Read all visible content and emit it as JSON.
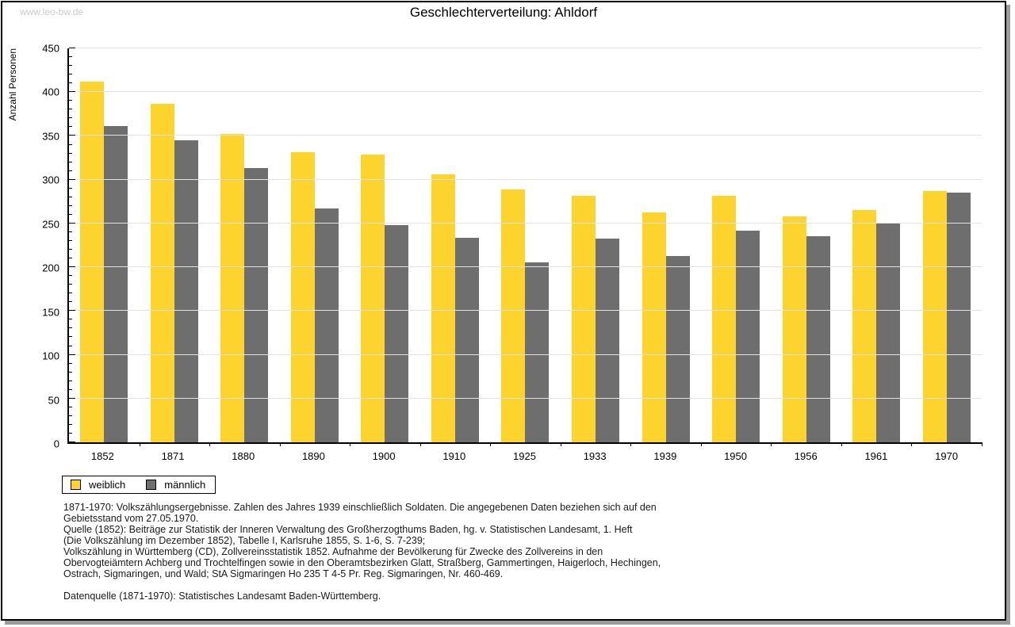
{
  "page": {
    "watermark": "www.leo-bw.de",
    "title": "Geschlechterverteilung: Ahldorf"
  },
  "chart_data": {
    "type": "bar",
    "title": "Geschlechterverteilung: Ahldorf",
    "xlabel": "",
    "ylabel": "Anzahl Personen",
    "ylim": [
      0,
      450
    ],
    "ytick_step": 50,
    "yminor_step": 10,
    "grid": "horizontal",
    "legend_position": "bottom-left",
    "categories": [
      "1852",
      "1871",
      "1880",
      "1890",
      "1900",
      "1910",
      "1925",
      "1933",
      "1939",
      "1950",
      "1956",
      "1961",
      "1970"
    ],
    "series": [
      {
        "name": "weiblich",
        "color": "#FCD42D",
        "values": [
          412,
          387,
          352,
          331,
          329,
          306,
          289,
          282,
          263,
          282,
          258,
          265,
          287
        ]
      },
      {
        "name": "männlich",
        "color": "#6E6E6E",
        "values": [
          361,
          345,
          313,
          267,
          248,
          234,
          206,
          233,
          213,
          242,
          235,
          250,
          285
        ]
      }
    ]
  },
  "footer": {
    "lines": [
      "1871-1970: Volkszählungsergebnisse. Zahlen des Jahres 1939 einschließlich Soldaten. Die angegebenen Daten beziehen sich auf den",
      "Gebietsstand vom 27.05.1970.",
      "Quelle (1852): Beiträge zur Statistik der Inneren Verwaltung des Großherzogthums Baden, hg. v. Statistischen Landesamt, 1. Heft",
      "(Die Volkszählung im Dezember 1852), Tabelle I, Karlsruhe 1855, S. 1-6, S. 7-239;",
      "Volkszählung in Württemberg (CD), Zollvereinsstatistik 1852. Aufnahme der Bevölkerung für Zwecke des Zollvereins in den",
      "Obervogteiämtern Achberg und Trochtelfingen sowie in den Oberamtsbezirken Glatt, Straßberg, Gammertingen, Haigerloch, Hechingen,",
      "Ostrach, Sigmaringen, und Wald; StA Sigmaringen Ho 235 T 4-5 Pr. Reg. Sigmaringen, Nr. 460-469.",
      "Datenquelle (1871-1970): Statistisches Landesamt Baden-Württemberg."
    ]
  }
}
